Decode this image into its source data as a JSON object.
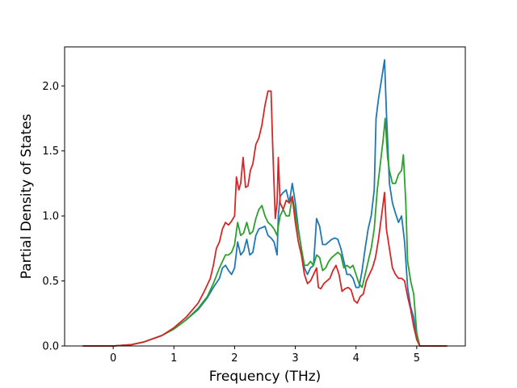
{
  "chart_data": {
    "type": "line",
    "title": "",
    "xlabel": "Frequency (THz)",
    "ylabel": "Partial Density of States",
    "xlim": [
      -0.8,
      5.8
    ],
    "ylim": [
      0,
      2.3
    ],
    "xticks": [
      0,
      1,
      2,
      3,
      4,
      5
    ],
    "yticks": [
      0.0,
      0.5,
      1.0,
      1.5,
      2.0
    ],
    "xtick_labels": [
      "0",
      "1",
      "2",
      "3",
      "4",
      "5"
    ],
    "ytick_labels": [
      "0.0",
      "0.5",
      "1.0",
      "1.5",
      "2.0"
    ],
    "grid": false,
    "legend": "none",
    "series": [
      {
        "color": "#1f77b4",
        "points": [
          [
            -0.5,
            0
          ],
          [
            0,
            0
          ],
          [
            0.3,
            0.01
          ],
          [
            0.5,
            0.03
          ],
          [
            0.8,
            0.08
          ],
          [
            1.0,
            0.13
          ],
          [
            1.2,
            0.2
          ],
          [
            1.4,
            0.28
          ],
          [
            1.55,
            0.37
          ],
          [
            1.65,
            0.45
          ],
          [
            1.75,
            0.52
          ],
          [
            1.8,
            0.6
          ],
          [
            1.85,
            0.62
          ],
          [
            1.9,
            0.58
          ],
          [
            1.95,
            0.55
          ],
          [
            2.0,
            0.6
          ],
          [
            2.05,
            0.8
          ],
          [
            2.1,
            0.7
          ],
          [
            2.15,
            0.73
          ],
          [
            2.2,
            0.82
          ],
          [
            2.25,
            0.7
          ],
          [
            2.3,
            0.72
          ],
          [
            2.35,
            0.85
          ],
          [
            2.4,
            0.9
          ],
          [
            2.5,
            0.92
          ],
          [
            2.55,
            0.85
          ],
          [
            2.6,
            0.83
          ],
          [
            2.65,
            0.8
          ],
          [
            2.7,
            0.7
          ],
          [
            2.72,
            1.0
          ],
          [
            2.75,
            1.15
          ],
          [
            2.8,
            1.18
          ],
          [
            2.85,
            1.2
          ],
          [
            2.9,
            1.1
          ],
          [
            2.95,
            1.25
          ],
          [
            3.0,
            1.1
          ],
          [
            3.05,
            0.9
          ],
          [
            3.1,
            0.75
          ],
          [
            3.15,
            0.6
          ],
          [
            3.2,
            0.55
          ],
          [
            3.25,
            0.6
          ],
          [
            3.3,
            0.62
          ],
          [
            3.35,
            0.98
          ],
          [
            3.4,
            0.92
          ],
          [
            3.45,
            0.78
          ],
          [
            3.5,
            0.78
          ],
          [
            3.55,
            0.8
          ],
          [
            3.6,
            0.82
          ],
          [
            3.65,
            0.83
          ],
          [
            3.7,
            0.82
          ],
          [
            3.75,
            0.75
          ],
          [
            3.8,
            0.65
          ],
          [
            3.85,
            0.55
          ],
          [
            3.9,
            0.55
          ],
          [
            3.95,
            0.52
          ],
          [
            4.0,
            0.45
          ],
          [
            4.05,
            0.45
          ],
          [
            4.1,
            0.58
          ],
          [
            4.15,
            0.75
          ],
          [
            4.2,
            0.9
          ],
          [
            4.25,
            1.0
          ],
          [
            4.3,
            1.2
          ],
          [
            4.33,
            1.75
          ],
          [
            4.37,
            1.9
          ],
          [
            4.42,
            2.05
          ],
          [
            4.47,
            2.2
          ],
          [
            4.5,
            1.8
          ],
          [
            4.55,
            1.25
          ],
          [
            4.6,
            1.1
          ],
          [
            4.65,
            1.02
          ],
          [
            4.7,
            0.95
          ],
          [
            4.75,
            1.0
          ],
          [
            4.8,
            0.8
          ],
          [
            4.85,
            0.45
          ],
          [
            4.9,
            0.3
          ],
          [
            4.95,
            0.22
          ],
          [
            5.0,
            0.05
          ],
          [
            5.05,
            0
          ],
          [
            5.5,
            0
          ]
        ]
      },
      {
        "color": "#2ca02c",
        "points": [
          [
            -0.5,
            0
          ],
          [
            0,
            0
          ],
          [
            0.3,
            0.01
          ],
          [
            0.5,
            0.03
          ],
          [
            0.8,
            0.08
          ],
          [
            1.0,
            0.13
          ],
          [
            1.2,
            0.2
          ],
          [
            1.4,
            0.29
          ],
          [
            1.55,
            0.38
          ],
          [
            1.65,
            0.48
          ],
          [
            1.75,
            0.6
          ],
          [
            1.8,
            0.65
          ],
          [
            1.85,
            0.7
          ],
          [
            1.9,
            0.7
          ],
          [
            1.95,
            0.72
          ],
          [
            2.0,
            0.78
          ],
          [
            2.05,
            0.95
          ],
          [
            2.1,
            0.85
          ],
          [
            2.15,
            0.87
          ],
          [
            2.2,
            0.95
          ],
          [
            2.25,
            0.86
          ],
          [
            2.3,
            0.88
          ],
          [
            2.35,
            0.98
          ],
          [
            2.4,
            1.05
          ],
          [
            2.45,
            1.08
          ],
          [
            2.5,
            1.0
          ],
          [
            2.55,
            0.95
          ],
          [
            2.6,
            0.93
          ],
          [
            2.65,
            0.9
          ],
          [
            2.7,
            0.85
          ],
          [
            2.72,
            0.92
          ],
          [
            2.75,
            1.0
          ],
          [
            2.8,
            1.05
          ],
          [
            2.85,
            1.0
          ],
          [
            2.9,
            1.0
          ],
          [
            2.95,
            1.15
          ],
          [
            3.0,
            1.02
          ],
          [
            3.05,
            0.88
          ],
          [
            3.1,
            0.75
          ],
          [
            3.15,
            0.62
          ],
          [
            3.2,
            0.62
          ],
          [
            3.25,
            0.65
          ],
          [
            3.3,
            0.62
          ],
          [
            3.35,
            0.7
          ],
          [
            3.4,
            0.68
          ],
          [
            3.45,
            0.58
          ],
          [
            3.5,
            0.6
          ],
          [
            3.55,
            0.65
          ],
          [
            3.6,
            0.68
          ],
          [
            3.65,
            0.7
          ],
          [
            3.7,
            0.72
          ],
          [
            3.75,
            0.7
          ],
          [
            3.8,
            0.6
          ],
          [
            3.85,
            0.62
          ],
          [
            3.9,
            0.6
          ],
          [
            3.95,
            0.62
          ],
          [
            4.0,
            0.55
          ],
          [
            4.05,
            0.48
          ],
          [
            4.1,
            0.45
          ],
          [
            4.15,
            0.55
          ],
          [
            4.2,
            0.65
          ],
          [
            4.25,
            0.75
          ],
          [
            4.3,
            0.9
          ],
          [
            4.35,
            1.2
          ],
          [
            4.4,
            1.4
          ],
          [
            4.45,
            1.6
          ],
          [
            4.48,
            1.75
          ],
          [
            4.52,
            1.45
          ],
          [
            4.55,
            1.35
          ],
          [
            4.6,
            1.25
          ],
          [
            4.65,
            1.25
          ],
          [
            4.7,
            1.32
          ],
          [
            4.75,
            1.35
          ],
          [
            4.78,
            1.47
          ],
          [
            4.82,
            1.1
          ],
          [
            4.85,
            0.65
          ],
          [
            4.9,
            0.5
          ],
          [
            4.95,
            0.4
          ],
          [
            5.0,
            0.1
          ],
          [
            5.05,
            0
          ],
          [
            5.5,
            0
          ]
        ]
      },
      {
        "color": "#d62728",
        "points": [
          [
            -0.5,
            0
          ],
          [
            0,
            0
          ],
          [
            0.3,
            0.01
          ],
          [
            0.5,
            0.03
          ],
          [
            0.8,
            0.08
          ],
          [
            1.0,
            0.14
          ],
          [
            1.2,
            0.22
          ],
          [
            1.4,
            0.33
          ],
          [
            1.5,
            0.42
          ],
          [
            1.6,
            0.52
          ],
          [
            1.65,
            0.62
          ],
          [
            1.7,
            0.75
          ],
          [
            1.75,
            0.8
          ],
          [
            1.8,
            0.9
          ],
          [
            1.85,
            0.95
          ],
          [
            1.9,
            0.93
          ],
          [
            1.95,
            0.96
          ],
          [
            2.0,
            1.0
          ],
          [
            2.03,
            1.3
          ],
          [
            2.07,
            1.2
          ],
          [
            2.1,
            1.25
          ],
          [
            2.14,
            1.45
          ],
          [
            2.18,
            1.22
          ],
          [
            2.22,
            1.23
          ],
          [
            2.26,
            1.35
          ],
          [
            2.3,
            1.4
          ],
          [
            2.35,
            1.55
          ],
          [
            2.4,
            1.6
          ],
          [
            2.45,
            1.7
          ],
          [
            2.5,
            1.85
          ],
          [
            2.55,
            1.96
          ],
          [
            2.6,
            1.96
          ],
          [
            2.63,
            1.5
          ],
          [
            2.67,
            0.98
          ],
          [
            2.7,
            1.1
          ],
          [
            2.72,
            1.45
          ],
          [
            2.75,
            1.1
          ],
          [
            2.8,
            1.05
          ],
          [
            2.85,
            1.12
          ],
          [
            2.9,
            1.1
          ],
          [
            2.95,
            1.15
          ],
          [
            3.0,
            0.95
          ],
          [
            3.05,
            0.8
          ],
          [
            3.1,
            0.7
          ],
          [
            3.15,
            0.55
          ],
          [
            3.2,
            0.48
          ],
          [
            3.25,
            0.5
          ],
          [
            3.3,
            0.55
          ],
          [
            3.35,
            0.6
          ],
          [
            3.38,
            0.45
          ],
          [
            3.42,
            0.44
          ],
          [
            3.47,
            0.48
          ],
          [
            3.52,
            0.5
          ],
          [
            3.57,
            0.52
          ],
          [
            3.62,
            0.58
          ],
          [
            3.67,
            0.62
          ],
          [
            3.72,
            0.55
          ],
          [
            3.77,
            0.42
          ],
          [
            3.82,
            0.44
          ],
          [
            3.87,
            0.45
          ],
          [
            3.92,
            0.43
          ],
          [
            3.97,
            0.35
          ],
          [
            4.02,
            0.33
          ],
          [
            4.07,
            0.38
          ],
          [
            4.12,
            0.4
          ],
          [
            4.17,
            0.5
          ],
          [
            4.22,
            0.55
          ],
          [
            4.27,
            0.6
          ],
          [
            4.32,
            0.68
          ],
          [
            4.37,
            0.82
          ],
          [
            4.42,
            1.0
          ],
          [
            4.47,
            1.18
          ],
          [
            4.5,
            0.9
          ],
          [
            4.55,
            0.75
          ],
          [
            4.6,
            0.6
          ],
          [
            4.65,
            0.55
          ],
          [
            4.7,
            0.52
          ],
          [
            4.75,
            0.52
          ],
          [
            4.8,
            0.5
          ],
          [
            4.85,
            0.38
          ],
          [
            4.9,
            0.28
          ],
          [
            4.95,
            0.15
          ],
          [
            5.0,
            0.05
          ],
          [
            5.05,
            0
          ],
          [
            5.5,
            0
          ]
        ]
      }
    ]
  }
}
